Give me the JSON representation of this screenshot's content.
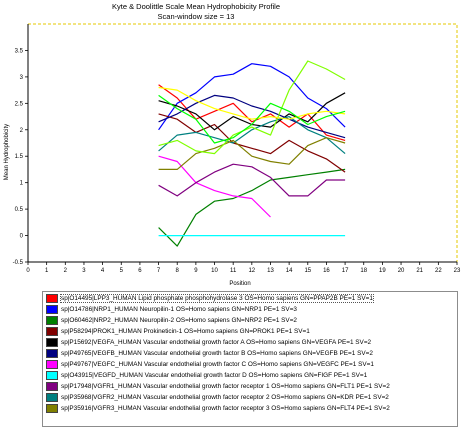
{
  "chart_data": {
    "type": "line",
    "title": "Kyte & Doolittle Scale Mean Hydrophobicity Profile",
    "subtitle": "Scan-window size = 13",
    "xlabel": "Position",
    "ylabel": "Mean Hydrophobicity",
    "xlim": [
      0,
      23
    ],
    "ylim": [
      -0.5,
      4
    ],
    "x_ticks": [
      "0",
      "1",
      "2",
      "3",
      "4",
      "5",
      "6",
      "7",
      "8",
      "9",
      "10",
      "11",
      "12",
      "13",
      "14",
      "15",
      "16",
      "17",
      "18",
      "19",
      "20",
      "21",
      "22",
      "23"
    ],
    "y_ticks": [
      "-0.5",
      "0",
      "0.5",
      "1",
      "1.5",
      "2",
      "2.5",
      "3",
      "3.5"
    ],
    "grid": false,
    "legend_placement": "bottom",
    "series": [
      {
        "name": "sp|O14495|LPP3_HUMAN Lipid phosphate phosphohydrolase 3 OS=Homo sapiens GN=PPAP2B PE=1 SV=1",
        "color": "#ff0000",
        "x": [
          7,
          8,
          9,
          10,
          11,
          12,
          13,
          14,
          15,
          16,
          17
        ],
        "y": [
          2.85,
          2.6,
          2.2,
          2.35,
          2.5,
          2.15,
          2.3,
          2.05,
          2.3,
          1.9,
          1.8
        ]
      },
      {
        "name": "sp|O14786|NRP1_HUMAN Neuropilin-1 OS=Homo sapiens GN=NRP1 PE=1 SV=3",
        "color": "#0000ff",
        "x": [
          7,
          8,
          9,
          10,
          11,
          12,
          13,
          14,
          15,
          16,
          17
        ],
        "y": [
          2.0,
          2.5,
          2.7,
          3.0,
          3.05,
          3.25,
          3.2,
          3.0,
          2.6,
          2.4,
          2.05
        ]
      },
      {
        "name": "sp|O60462|NRP2_HUMAN Neuropilin-2 OS=Homo sapiens GN=NRP2 PE=1 SV=2",
        "color": "#008000",
        "x": [
          7,
          8,
          9,
          10,
          11,
          12,
          13,
          14,
          15,
          16,
          17
        ],
        "y": [
          0.15,
          -0.2,
          0.4,
          0.65,
          0.7,
          0.85,
          1.05,
          1.1,
          1.15,
          1.2,
          1.25
        ]
      },
      {
        "name": "sp|P58294|PROK1_HUMAN Prokineticin-1 OS=Homo sapiens GN=PROK1 PE=1 SV=1",
        "color": "#800000",
        "x": [
          7,
          8,
          9,
          10,
          11,
          12,
          13,
          14,
          15,
          16,
          17
        ],
        "y": [
          2.3,
          2.2,
          1.95,
          2.1,
          1.75,
          1.65,
          1.55,
          1.8,
          1.6,
          1.45,
          1.2
        ]
      },
      {
        "name": "sp|P15692|VEGFA_HUMAN Vascular endothelial growth factor A OS=Homo sapiens GN=VEGFA PE=1 SV=2",
        "color": "#000000",
        "x": [
          7,
          8,
          9,
          10,
          11,
          12,
          13,
          14,
          15,
          16,
          17
        ],
        "y": [
          2.55,
          2.45,
          2.3,
          2.0,
          2.25,
          2.1,
          2.05,
          2.3,
          2.15,
          2.5,
          2.7
        ]
      },
      {
        "name": "sp|P49765|VEGFB_HUMAN Vascular endothelial growth factor B OS=Homo sapiens GN=VEGFB PE=1 SV=2",
        "color": "#000080",
        "x": [
          7,
          8,
          9,
          10,
          11,
          12,
          13,
          14,
          15,
          16,
          17
        ],
        "y": [
          2.15,
          2.3,
          2.5,
          2.65,
          2.6,
          2.45,
          2.35,
          2.2,
          2.05,
          1.95,
          1.85
        ]
      },
      {
        "name": "sp|P49767|VEGFC_HUMAN Vascular endothelial growth factor C OS=Homo sapiens GN=VEGFC PE=1 SV=1",
        "color": "#ff00ff",
        "x": [
          7,
          8,
          9,
          10,
          11,
          12,
          13
        ],
        "y": [
          1.5,
          1.4,
          1.0,
          0.85,
          0.75,
          0.7,
          0.35
        ]
      },
      {
        "name": "sp|O43915|VEGFD_HUMAN Vascular endothelial growth factor D OS=Homo sapiens GN=FIGF PE=1 SV=1",
        "color": "#00ffff",
        "x": [
          7,
          8,
          9,
          10,
          11,
          12,
          13,
          14,
          15,
          16,
          17
        ],
        "y": [
          0.0,
          0.0,
          0.0,
          0.0,
          0.0,
          0.0,
          0.0,
          0.0,
          0.0,
          0.0,
          0.0
        ]
      },
      {
        "name": "sp|P17948|VGFR1_HUMAN Vascular endothelial growth factor receptor 1 OS=Homo sapiens GN=FLT1 PE=1 SV=2",
        "color": "#800080",
        "x": [
          7,
          8,
          9,
          10,
          11,
          12,
          13,
          14,
          15,
          16,
          17
        ],
        "y": [
          0.95,
          0.75,
          1.0,
          1.2,
          1.35,
          1.3,
          1.1,
          0.75,
          0.75,
          1.05,
          1.05
        ]
      },
      {
        "name": "sp|P35968|VGFR2_HUMAN Vascular endothelial growth factor receptor 2 OS=Homo sapiens GN=KDR PE=1 SV=2",
        "color": "#008080",
        "x": [
          7,
          8,
          9,
          10,
          11,
          12,
          13,
          14,
          15,
          16,
          17
        ],
        "y": [
          1.6,
          1.9,
          1.95,
          1.85,
          1.75,
          2.0,
          2.15,
          2.25,
          2.0,
          1.85,
          1.55
        ]
      },
      {
        "name": "sp|P35916|VGFR3_HUMAN Vascular endothelial growth factor receptor 3 OS=Homo sapiens GN=FLT4 PE=1 SV=2",
        "color": "#808000",
        "x": [
          7,
          8,
          9,
          10,
          11,
          12,
          13,
          14,
          15,
          16,
          17
        ],
        "y": [
          1.25,
          1.25,
          1.55,
          1.65,
          1.8,
          1.5,
          1.4,
          1.35,
          1.7,
          1.85,
          1.75
        ]
      },
      {
        "name": "",
        "color": "#80ff00",
        "x": [
          7,
          8,
          9,
          10,
          11,
          12,
          13,
          14,
          15,
          16,
          17
        ],
        "y": [
          1.7,
          1.8,
          1.6,
          1.55,
          1.9,
          2.05,
          1.9,
          2.75,
          3.3,
          3.15,
          2.95
        ]
      },
      {
        "name": "",
        "color": "#ffff00",
        "x": [
          7,
          8,
          9,
          10,
          11,
          12,
          13,
          14,
          15,
          16,
          17
        ],
        "y": [
          2.8,
          2.75,
          2.55,
          2.4,
          2.3,
          2.2,
          2.25,
          2.2,
          2.3,
          2.35,
          2.3
        ]
      },
      {
        "name": "",
        "color": "#00ff00",
        "x": [
          7,
          8,
          9,
          10,
          11,
          12,
          13,
          14,
          15,
          16,
          17
        ],
        "y": [
          2.65,
          2.4,
          2.2,
          1.75,
          1.85,
          2.1,
          2.5,
          2.35,
          2.1,
          2.25,
          2.35
        ]
      }
    ]
  }
}
